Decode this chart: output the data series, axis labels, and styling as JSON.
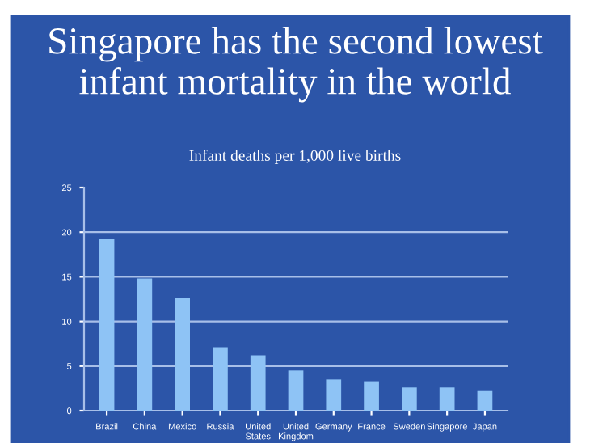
{
  "chart_data": {
    "type": "bar",
    "title": "Singapore has the second lowest infant mortality in the world",
    "subtitle": "Infant deaths per 1,000 live births",
    "categories": [
      "Brazil",
      "China",
      "Mexico",
      "Russia",
      "United\nStates",
      "United\nKingdom",
      "Germany",
      "France",
      "Sweden",
      "Singapore",
      "Japan"
    ],
    "values": [
      19.2,
      14.8,
      12.6,
      7.1,
      6.2,
      4.5,
      3.5,
      3.3,
      2.6,
      2.6,
      2.2
    ],
    "color": "#8ec3f5",
    "ylim": [
      0,
      25
    ],
    "yticks": [
      0,
      5,
      10,
      15,
      20,
      25
    ],
    "grid": "y"
  }
}
